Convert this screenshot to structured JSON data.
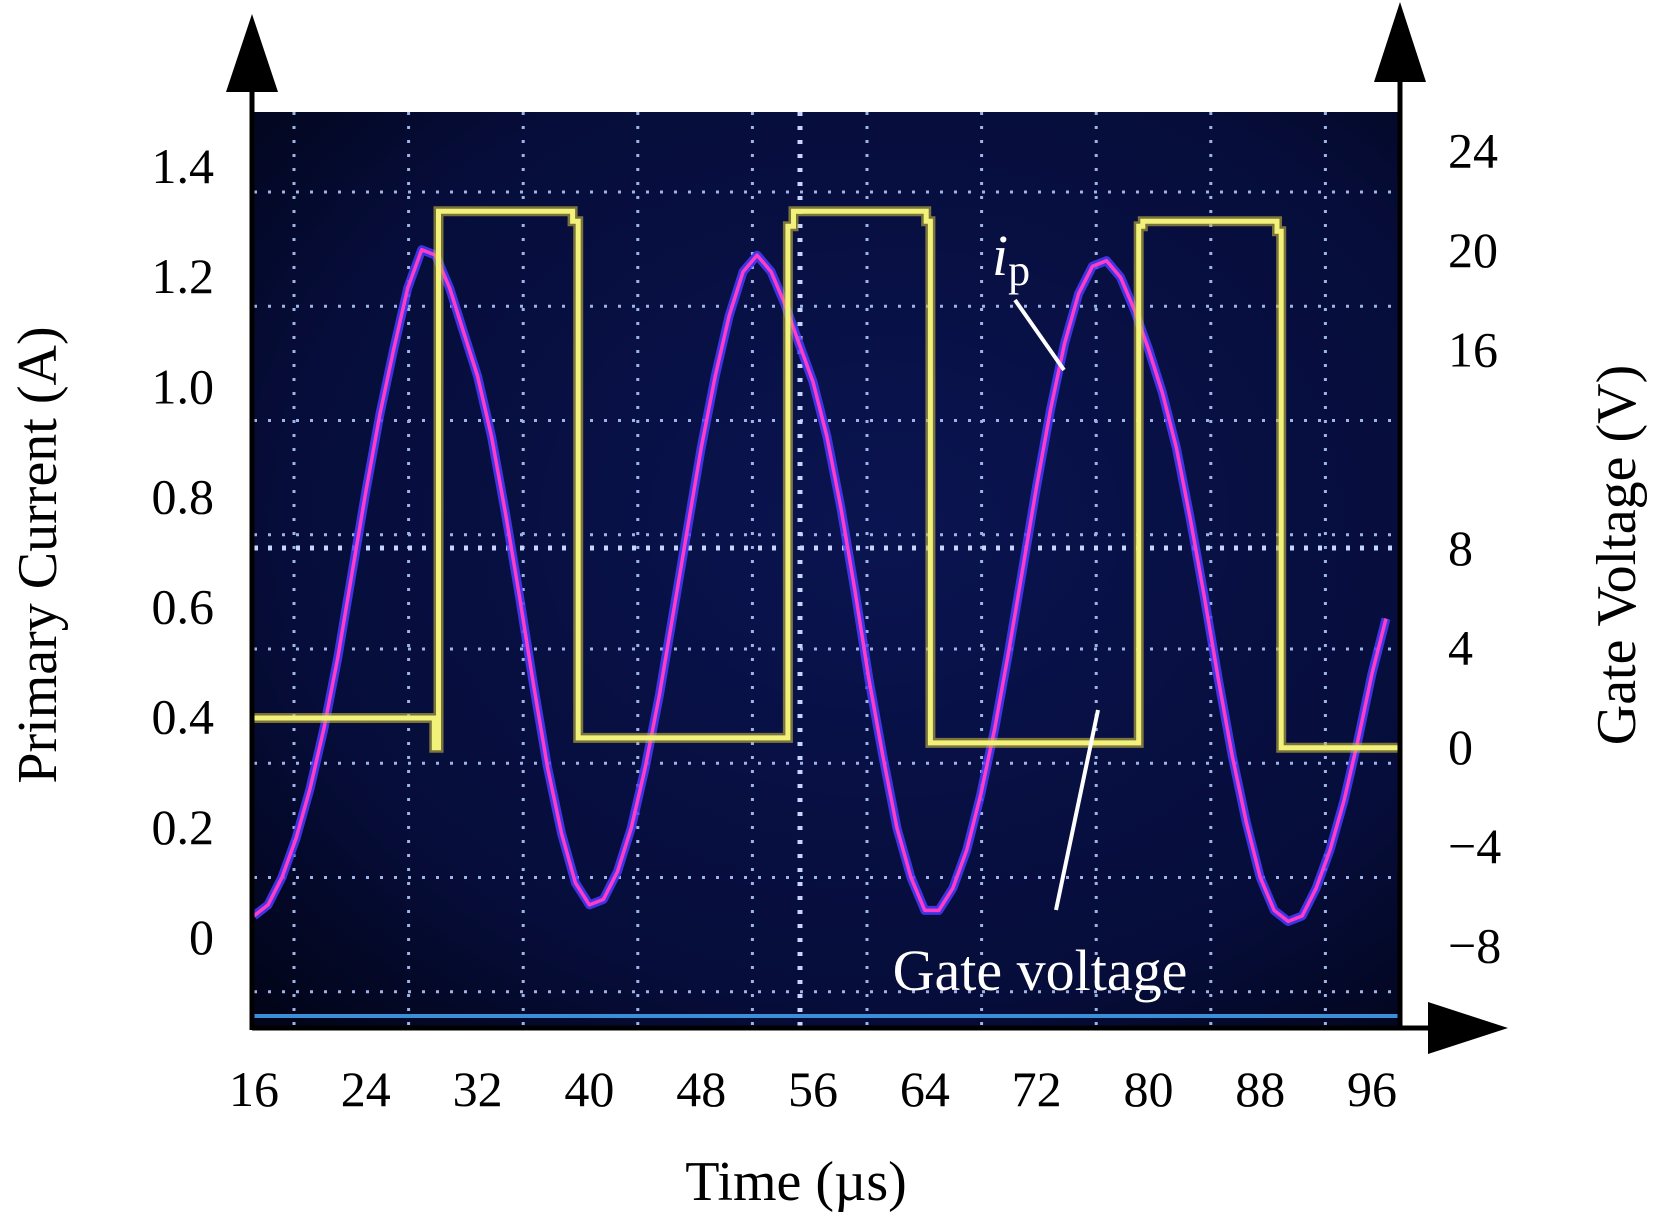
{
  "chart_data": {
    "type": "line",
    "xlabel": "Time (µs)",
    "ylabel_left": "Primary Current (A)",
    "ylabel_right": "Gate Voltage (V)",
    "xlim": [
      16,
      98
    ],
    "xticks": [
      "16",
      "24",
      "32",
      "40",
      "48",
      "56",
      "64",
      "72",
      "80",
      "88",
      "96"
    ],
    "ylim_left": [
      -0.16,
      1.5
    ],
    "yticks_left": [
      "0",
      "0.2",
      "0.4",
      "0.6",
      "0.8",
      "1.0",
      "1.2",
      "1.4"
    ],
    "ylim_right": [
      -11.2,
      25.6
    ],
    "yticks_right": [
      "−8",
      "−4",
      "0",
      "4",
      "8",
      "16",
      "20",
      "24"
    ],
    "yticks_right_values": [
      -8,
      -4,
      0,
      4,
      8,
      16,
      20,
      24
    ],
    "background": "oscilloscope-screen",
    "grid": true,
    "series": [
      {
        "axis": "left",
        "color": "#ff3cc8",
        "x": [
          16,
          17,
          18,
          19,
          20,
          21,
          22,
          23,
          24,
          25,
          26,
          27,
          28,
          29,
          30,
          31,
          32,
          33,
          34,
          35,
          36,
          37,
          38,
          39,
          40,
          41,
          42,
          43,
          44,
          45,
          46,
          47,
          48,
          49,
          50,
          51,
          52,
          53,
          54,
          55,
          56,
          57,
          58,
          59,
          60,
          61,
          62,
          63,
          64,
          65,
          66,
          67,
          68,
          69,
          70,
          71,
          72,
          73,
          74,
          75,
          76,
          77,
          78,
          79,
          80,
          81,
          82,
          83,
          84,
          85,
          86,
          87,
          88,
          89,
          90,
          91,
          92,
          93,
          94,
          95,
          96,
          97
        ],
        "values": [
          0.04,
          0.06,
          0.11,
          0.18,
          0.27,
          0.38,
          0.51,
          0.66,
          0.81,
          0.95,
          1.07,
          1.18,
          1.25,
          1.24,
          1.18,
          1.1,
          1.02,
          0.91,
          0.77,
          0.62,
          0.46,
          0.31,
          0.19,
          0.1,
          0.06,
          0.07,
          0.12,
          0.2,
          0.31,
          0.44,
          0.59,
          0.74,
          0.89,
          1.02,
          1.13,
          1.21,
          1.24,
          1.21,
          1.15,
          1.08,
          1.01,
          0.91,
          0.78,
          0.63,
          0.47,
          0.33,
          0.2,
          0.11,
          0.05,
          0.05,
          0.09,
          0.16,
          0.26,
          0.38,
          0.52,
          0.67,
          0.82,
          0.96,
          1.08,
          1.17,
          1.22,
          1.23,
          1.2,
          1.14,
          1.07,
          0.99,
          0.89,
          0.76,
          0.62,
          0.47,
          0.33,
          0.21,
          0.11,
          0.05,
          0.03,
          0.04,
          0.09,
          0.16,
          0.25,
          0.36,
          0.48,
          0.58
        ]
      },
      {
        "axis": "right",
        "color": "#f2f27a",
        "x": [
          16,
          28.9,
          28.9,
          29.2,
          29.2,
          38.8,
          38.8,
          39.2,
          39.2,
          54.2,
          54.2,
          54.6,
          54.6,
          64.1,
          64.1,
          64.4,
          64.4,
          79.3,
          79.3,
          79.6,
          79.6,
          89.2,
          89.2,
          89.5,
          89.5,
          98
        ],
        "values": [
          1.2,
          1.2,
          0.0,
          0.0,
          21.6,
          21.6,
          21.2,
          21.2,
          0.4,
          0.4,
          21.0,
          21.0,
          21.6,
          21.6,
          21.2,
          21.2,
          0.2,
          0.2,
          21.0,
          21.0,
          21.2,
          21.2,
          20.8,
          20.8,
          0.0,
          0.0
        ]
      }
    ],
    "annotations": {
      "ip_italic": "i",
      "ip_subscript": "p",
      "gate_voltage": "Gate voltage"
    }
  }
}
